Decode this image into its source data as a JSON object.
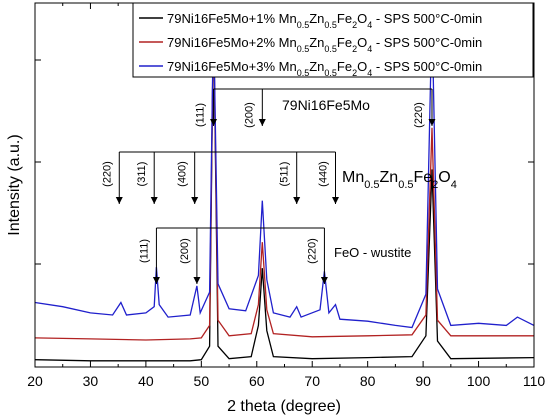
{
  "chart_data": {
    "type": "line",
    "xlabel": "2 theta (degree)",
    "ylabel": "Intensity (a.u.)",
    "xlim": [
      20,
      110
    ],
    "x_ticks": [
      "20",
      "30",
      "40",
      "50",
      "60",
      "70",
      "80",
      "90",
      "100",
      "110"
    ],
    "y_tick_labels": "none",
    "grid": false,
    "legend_position": "top-right",
    "series": [
      {
        "name_parts": [
          "79Ni16Fe5Mo+1% Mn",
          "0.5",
          "Zn",
          "0.5",
          "Fe",
          "2",
          "O",
          "4",
          " - SPS 500°C-0min"
        ],
        "color": "#000000",
        "points": [
          [
            20,
            7
          ],
          [
            30,
            6
          ],
          [
            40,
            6
          ],
          [
            48,
            6
          ],
          [
            50,
            7
          ],
          [
            51.5,
            20
          ],
          [
            52.2,
            340
          ],
          [
            53,
            20
          ],
          [
            55,
            8
          ],
          [
            59,
            10
          ],
          [
            60.3,
            40
          ],
          [
            61,
            95
          ],
          [
            61.8,
            35
          ],
          [
            63,
            10
          ],
          [
            70,
            8
          ],
          [
            80,
            9
          ],
          [
            88,
            10
          ],
          [
            90.5,
            30
          ],
          [
            91.6,
            190
          ],
          [
            92.6,
            25
          ],
          [
            95,
            8
          ],
          [
            110,
            9
          ]
        ]
      },
      {
        "name_parts": [
          "79Ni16Fe5Mo+2% Mn",
          "0.5",
          "Zn",
          "0.5",
          "Fe",
          "2",
          "O",
          "4",
          " - SPS 500°C-0min"
        ],
        "color": "#b22222",
        "points": [
          [
            20,
            28
          ],
          [
            30,
            27
          ],
          [
            40,
            26
          ],
          [
            48,
            27
          ],
          [
            50,
            28
          ],
          [
            51.5,
            40
          ],
          [
            52.2,
            340
          ],
          [
            53,
            45
          ],
          [
            55,
            30
          ],
          [
            59,
            32
          ],
          [
            60.3,
            60
          ],
          [
            61,
            120
          ],
          [
            61.8,
            55
          ],
          [
            63,
            32
          ],
          [
            70,
            29
          ],
          [
            80,
            30
          ],
          [
            88,
            31
          ],
          [
            90.5,
            50
          ],
          [
            91.6,
            230
          ],
          [
            92.6,
            45
          ],
          [
            95,
            30
          ],
          [
            110,
            30
          ]
        ]
      },
      {
        "name_parts": [
          "79Ni16Fe5Mo+3% Mn",
          "0.5",
          "Zn",
          "0.5",
          "Fe",
          "2",
          "O",
          "4",
          " - SPS 500°C-0min"
        ],
        "color": "#2020cc",
        "points": [
          [
            20,
            62
          ],
          [
            25,
            58
          ],
          [
            30,
            52
          ],
          [
            34,
            50
          ],
          [
            35.5,
            62
          ],
          [
            36.5,
            50
          ],
          [
            40,
            52
          ],
          [
            41.5,
            58
          ],
          [
            41.9,
            96
          ],
          [
            42.4,
            60
          ],
          [
            44,
            48
          ],
          [
            48,
            50
          ],
          [
            49.2,
            78
          ],
          [
            49.8,
            52
          ],
          [
            51.5,
            72
          ],
          [
            52.2,
            340
          ],
          [
            53,
            80
          ],
          [
            55,
            56
          ],
          [
            58,
            54
          ],
          [
            60.3,
            88
          ],
          [
            61,
            160
          ],
          [
            61.8,
            84
          ],
          [
            63,
            52
          ],
          [
            66,
            48
          ],
          [
            67.2,
            58
          ],
          [
            68,
            48
          ],
          [
            71.4,
            55
          ],
          [
            72.2,
            92
          ],
          [
            73,
            52
          ],
          [
            74.2,
            60
          ],
          [
            75,
            46
          ],
          [
            80,
            44
          ],
          [
            85,
            40
          ],
          [
            88,
            38
          ],
          [
            90.5,
            70
          ],
          [
            91.6,
            340
          ],
          [
            92.6,
            75
          ],
          [
            95,
            40
          ],
          [
            100,
            42
          ],
          [
            105,
            40
          ],
          [
            107,
            48
          ],
          [
            110,
            40
          ]
        ]
      }
    ],
    "annotations": {
      "alloy": {
        "name": "79Ni16Fe5Mo",
        "peaks": [
          {
            "label": "(111)",
            "x": 52.2
          },
          {
            "label": "(200)",
            "x": 61.0
          },
          {
            "label": "(220)",
            "x": 91.6
          }
        ]
      },
      "ferrite": {
        "name_parts": [
          "Mn",
          "0.5",
          "Zn",
          "0.5",
          "Fe",
          "2",
          "O",
          "4"
        ],
        "peaks": [
          {
            "label": "(220)",
            "x": 35.2
          },
          {
            "label": "(311)",
            "x": 41.5
          },
          {
            "label": "(400)",
            "x": 48.8
          },
          {
            "label": "(511)",
            "x": 67.2
          },
          {
            "label": "(440)",
            "x": 74.2
          }
        ]
      },
      "wustite": {
        "name": "FeO - wustite",
        "peaks": [
          {
            "label": "(111)",
            "x": 41.9
          },
          {
            "label": "(200)",
            "x": 49.2
          },
          {
            "label": "(220)",
            "x": 72.2
          }
        ]
      }
    }
  }
}
